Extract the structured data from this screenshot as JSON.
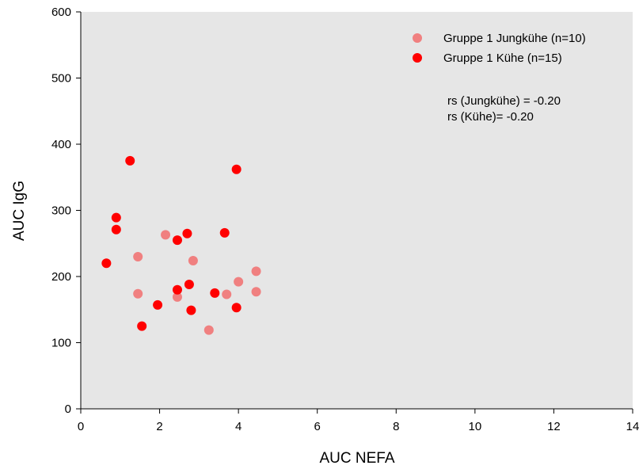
{
  "chart_data": {
    "type": "scatter",
    "title": "",
    "xlabel": "AUC NEFA",
    "ylabel": "AUC IgG",
    "xlim": [
      0,
      14
    ],
    "ylim": [
      0,
      600
    ],
    "xticks": [
      "0",
      "2",
      "4",
      "6",
      "8",
      "10",
      "12",
      "14"
    ],
    "yticks": [
      "0",
      "100",
      "200",
      "300",
      "400",
      "500",
      "600"
    ],
    "grid": false,
    "legend_position": "top-right",
    "plot_background": "#e6e6e6",
    "series": [
      {
        "name": "Gruppe 1 Jungkühe (n=10)",
        "color": "#f08080",
        "points": [
          [
            1.45,
            230
          ],
          [
            1.45,
            174
          ],
          [
            2.15,
            263
          ],
          [
            2.45,
            169
          ],
          [
            2.85,
            224
          ],
          [
            3.25,
            119
          ],
          [
            3.7,
            173
          ],
          [
            4.0,
            192
          ],
          [
            4.45,
            208
          ],
          [
            4.45,
            177
          ]
        ]
      },
      {
        "name": "Gruppe 1 Kühe (n=15)",
        "color": "#ff0000",
        "points": [
          [
            0.65,
            220
          ],
          [
            0.9,
            289
          ],
          [
            0.9,
            271
          ],
          [
            1.25,
            375
          ],
          [
            1.55,
            125
          ],
          [
            1.95,
            157
          ],
          [
            2.45,
            180
          ],
          [
            2.45,
            255
          ],
          [
            2.7,
            265
          ],
          [
            2.75,
            188
          ],
          [
            2.8,
            149
          ],
          [
            3.4,
            175
          ],
          [
            3.65,
            266
          ],
          [
            3.95,
            362
          ],
          [
            3.95,
            153
          ]
        ]
      }
    ],
    "annotations": [
      "rs (Jungkühe) = -0.20",
      "rs (Kühe)= -0.20"
    ]
  }
}
